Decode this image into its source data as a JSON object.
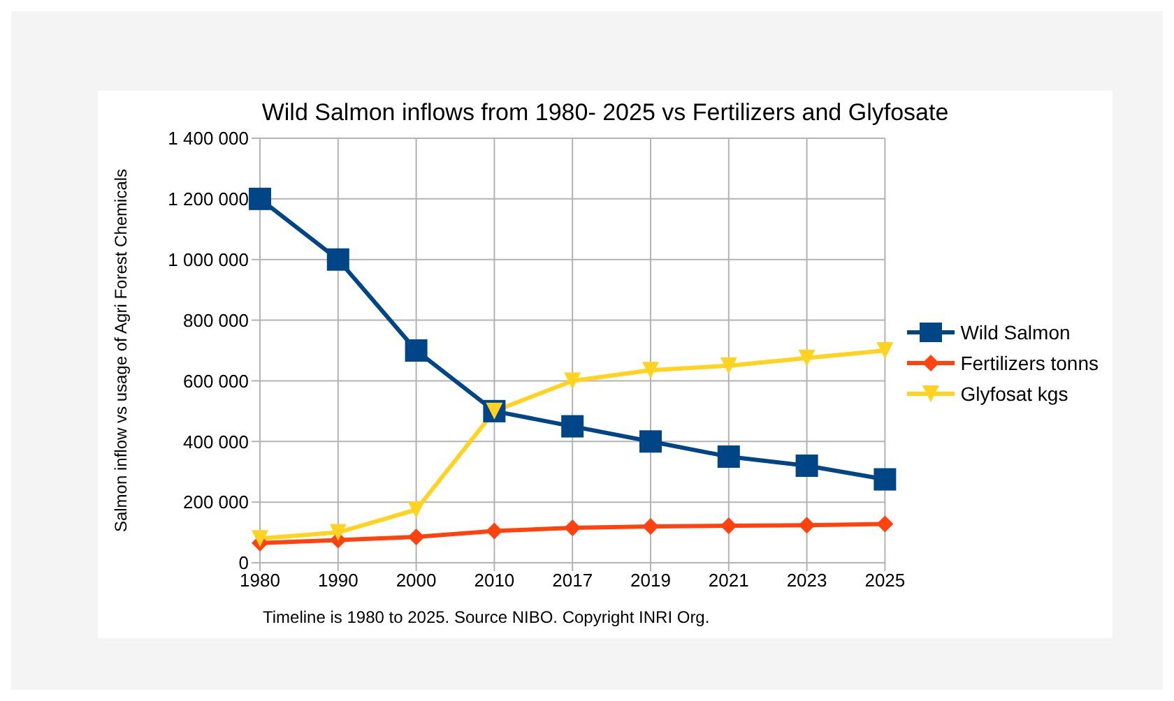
{
  "chart_data": {
    "type": "line",
    "title": "Wild Salmon inflows from 1980- 2025 vs Fertilizers and Glyfosate",
    "ylabel": "Salmon inflow vs usage of Agri Forest Chemicals",
    "annotations": [
      "Timeline is 1980 to 2025. Source NIBO. Copyright INRI Org."
    ],
    "categories": [
      "1980",
      "1990",
      "2000",
      "2010",
      "2017",
      "2019",
      "2021",
      "2023",
      "2025"
    ],
    "series": [
      {
        "name": "Wild Salmon",
        "color": "#004586",
        "marker": "square",
        "values": [
          1200000,
          1000000,
          700000,
          500000,
          450000,
          400000,
          350000,
          320000,
          275000
        ]
      },
      {
        "name": "Fertilizers tonns",
        "color": "#ff420e",
        "marker": "diamond",
        "values": [
          65000,
          75000,
          85000,
          105000,
          115000,
          120000,
          122000,
          124000,
          128000
        ]
      },
      {
        "name": "Glyfosat kgs",
        "color": "#ffd320",
        "marker": "triangle",
        "values": [
          80000,
          100000,
          175000,
          500000,
          600000,
          635000,
          650000,
          675000,
          700000
        ]
      }
    ],
    "ylim": [
      0,
      1400000
    ],
    "yticks": [
      0,
      {
        "value": 200000,
        "label": "200 000"
      },
      {
        "value": 400000,
        "label": "400 000"
      },
      {
        "value": 600000,
        "label": "600 000"
      },
      {
        "value": 800000,
        "label": "800 000"
      },
      {
        "value": 1000000,
        "label": "1 000 000"
      },
      {
        "value": 1200000,
        "label": "1 200 000"
      },
      {
        "value": 1400000,
        "label": "1 400 000"
      }
    ],
    "grid": true,
    "legend": "right",
    "line_style": "solid"
  }
}
